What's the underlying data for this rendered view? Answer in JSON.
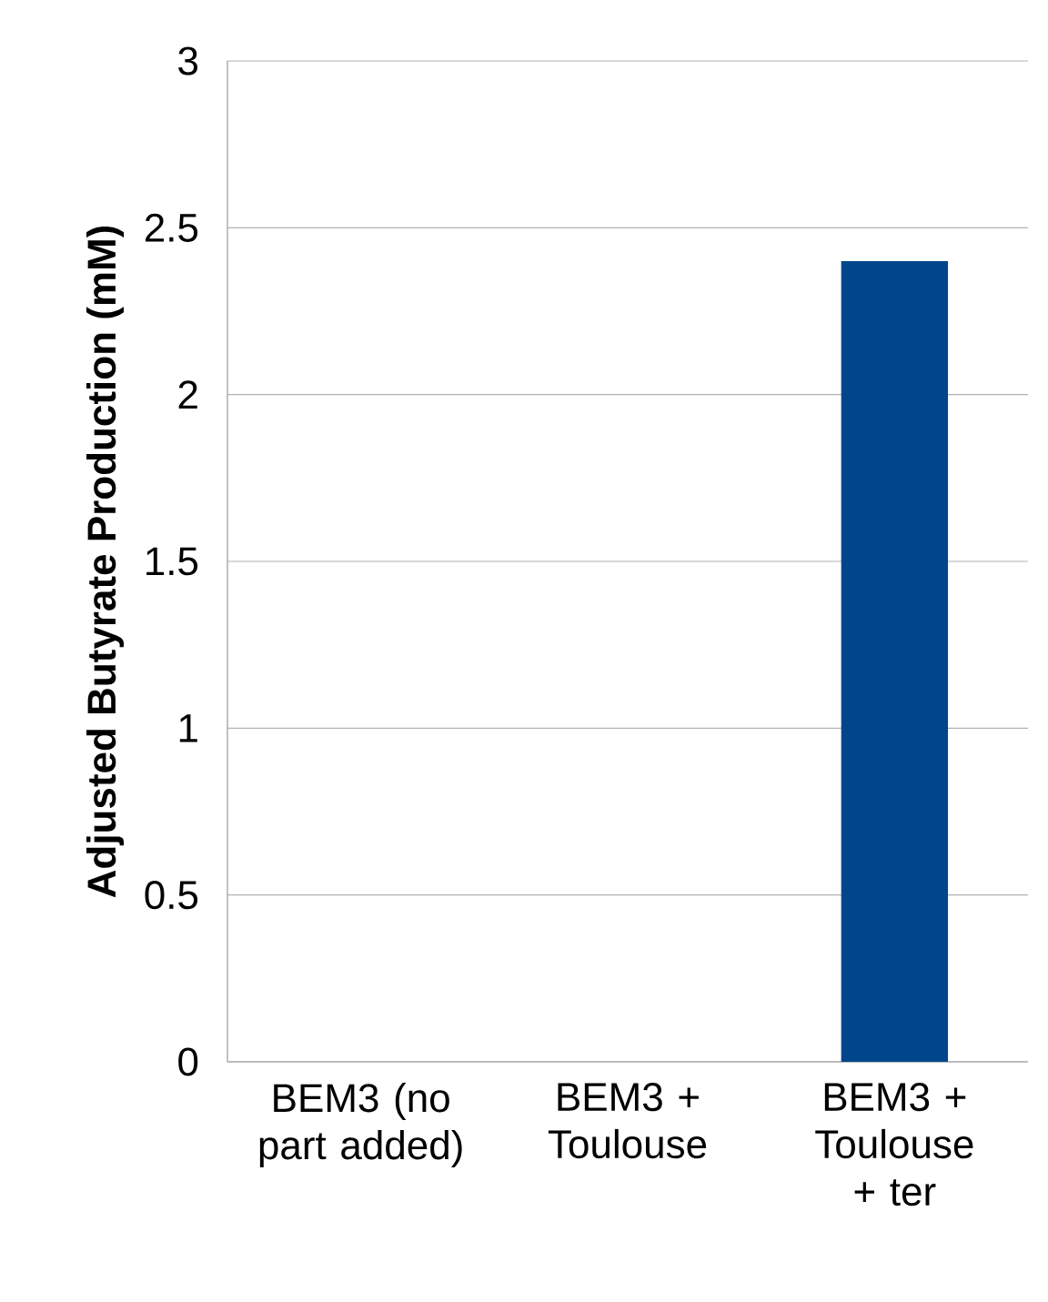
{
  "chart_data": {
    "type": "bar",
    "ylabel": "Adjusted Butyrate Production (mM)",
    "categories": [
      "BEM3 (no part added)",
      "BEM3 + Toulouse",
      "BEM3 + Toulouse + ter"
    ],
    "values": [
      0,
      0,
      2.4
    ],
    "color": "#00468b",
    "ylim": [
      0,
      3
    ],
    "yticks": [
      0,
      0.5,
      1,
      1.5,
      2,
      2.5,
      3
    ],
    "grid": "y"
  }
}
